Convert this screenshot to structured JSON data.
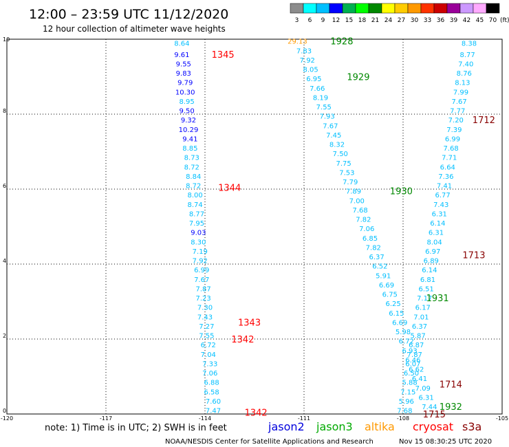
{
  "header": {
    "title": "12:00 – 23:59 UTC 11/12/2020",
    "subtitle": "12 hour collection of altimeter wave heights"
  },
  "legend_scale": {
    "labels": [
      "3",
      "6",
      "9",
      "12",
      "15",
      "18",
      "21",
      "24",
      "27",
      "30",
      "33",
      "36",
      "39",
      "42",
      "45",
      "70"
    ],
    "unit": "(ft)",
    "colors": [
      "#8c8c8c",
      "#00ffff",
      "#00bfff",
      "#0000ff",
      "#00b050",
      "#00ff00",
      "#008800",
      "#ffff00",
      "#ffcc00",
      "#ff9900",
      "#ff3300",
      "#cc0000",
      "#990099",
      "#cc99ff",
      "#ffaaff",
      "#000000"
    ]
  },
  "footer": {
    "note": "note:  1) Time is in UTC; 2) SWH is in feet",
    "satellites": [
      {
        "name": "jason2",
        "color": "#0000dd"
      },
      {
        "name": "jason3",
        "color": "#00aa00"
      },
      {
        "name": "altika",
        "color": "#ff9900"
      },
      {
        "name": "cryosat",
        "color": "#ff0000"
      },
      {
        "name": "s3a",
        "color": "#880000"
      }
    ],
    "credit": "NOAA/NESDIS Center for Satellite Applications and Research",
    "timestamp": "Nov 15 08:30:25 UTC 2020"
  },
  "chart_data": {
    "type": "scatter",
    "xlim": [
      -120,
      -105
    ],
    "ylim": [
      0,
      10
    ],
    "x_ticks": [
      {
        "v": -120,
        "label": "-120"
      },
      {
        "v": -117,
        "label": "-117"
      },
      {
        "v": -114,
        "label": "-114"
      },
      {
        "v": -111,
        "label": "-111"
      },
      {
        "v": -108,
        "label": "-108"
      },
      {
        "v": -105,
        "label": "-105"
      }
    ],
    "y_ticks": [
      {
        "v": 0,
        "label": "0"
      },
      {
        "v": 2,
        "label": "2"
      },
      {
        "v": 4,
        "label": "4"
      },
      {
        "v": 6,
        "label": "6"
      },
      {
        "v": 8,
        "label": "8"
      },
      {
        "v": 10,
        "label": "10"
      }
    ],
    "grid": true,
    "colors": {
      "c6": "#00bfff",
      "c9": "#0000ff",
      "c3": "#00bfff",
      "alt": "#ff9900"
    },
    "time_labels": [
      {
        "x": -113.8,
        "y": 9.6,
        "label": "1345",
        "color": "#ff0000"
      },
      {
        "x": -113.6,
        "y": 6.05,
        "label": "1344",
        "color": "#ff0000"
      },
      {
        "x": -113.0,
        "y": 2.45,
        "label": "1343",
        "color": "#ff0000"
      },
      {
        "x": -113.2,
        "y": 2.0,
        "label": "1342",
        "color": "#ff0000"
      },
      {
        "x": -112.8,
        "y": 0.05,
        "label": "1342",
        "color": "#ff0000"
      },
      {
        "x": -110.2,
        "y": 9.95,
        "label": "1928",
        "color": "#008800"
      },
      {
        "x": -109.7,
        "y": 9.0,
        "label": "1929",
        "color": "#008800"
      },
      {
        "x": -108.4,
        "y": 5.95,
        "label": "1930",
        "color": "#008800"
      },
      {
        "x": -107.3,
        "y": 3.1,
        "label": "1931",
        "color": "#008800"
      },
      {
        "x": -106.9,
        "y": 0.2,
        "label": "1932",
        "color": "#008800"
      },
      {
        "x": -105.9,
        "y": 7.85,
        "label": "1712",
        "color": "#880000"
      },
      {
        "x": -106.2,
        "y": 4.25,
        "label": "1713",
        "color": "#880000"
      },
      {
        "x": -106.9,
        "y": 0.8,
        "label": "1714",
        "color": "#880000"
      },
      {
        "x": -107.4,
        "y": 0.0,
        "label": "1715",
        "color": "#880000"
      }
    ],
    "series": [
      {
        "name": "jason2 (1342-1345)",
        "points": [
          {
            "x": -114.7,
            "y": 9.9,
            "v": "8.64",
            "c": "c6"
          },
          {
            "x": -114.7,
            "y": 9.6,
            "v": "9.61",
            "c": "c9"
          },
          {
            "x": -114.65,
            "y": 9.35,
            "v": "9.55",
            "c": "c9"
          },
          {
            "x": -114.65,
            "y": 9.1,
            "v": "9.83",
            "c": "c9"
          },
          {
            "x": -114.6,
            "y": 8.85,
            "v": "9.79",
            "c": "c9"
          },
          {
            "x": -114.6,
            "y": 8.6,
            "v": "10.30",
            "c": "c9"
          },
          {
            "x": -114.55,
            "y": 8.35,
            "v": "8.95",
            "c": "c6"
          },
          {
            "x": -114.55,
            "y": 8.1,
            "v": "9.50",
            "c": "c9"
          },
          {
            "x": -114.5,
            "y": 7.85,
            "v": "9.32",
            "c": "c9"
          },
          {
            "x": -114.5,
            "y": 7.6,
            "v": "10.29",
            "c": "c9"
          },
          {
            "x": -114.45,
            "y": 7.35,
            "v": "9.41",
            "c": "c9"
          },
          {
            "x": -114.45,
            "y": 7.1,
            "v": "8.85",
            "c": "c6"
          },
          {
            "x": -114.4,
            "y": 6.85,
            "v": "8.73",
            "c": "c6"
          },
          {
            "x": -114.4,
            "y": 6.6,
            "v": "8.72",
            "c": "c6"
          },
          {
            "x": -114.35,
            "y": 6.35,
            "v": "8.84",
            "c": "c6"
          },
          {
            "x": -114.35,
            "y": 6.1,
            "v": "8.72",
            "c": "c6"
          },
          {
            "x": -114.3,
            "y": 5.85,
            "v": "8.00",
            "c": "c6"
          },
          {
            "x": -114.3,
            "y": 5.6,
            "v": "8.74",
            "c": "c6"
          },
          {
            "x": -114.25,
            "y": 5.35,
            "v": "8.77",
            "c": "c6"
          },
          {
            "x": -114.25,
            "y": 5.1,
            "v": "7.95",
            "c": "c6"
          },
          {
            "x": -114.2,
            "y": 4.85,
            "v": "9.03",
            "c": "c9"
          },
          {
            "x": -114.2,
            "y": 4.6,
            "v": "8.30",
            "c": "c6"
          },
          {
            "x": -114.15,
            "y": 4.35,
            "v": "7.19",
            "c": "c6"
          },
          {
            "x": -114.15,
            "y": 4.1,
            "v": "7.92",
            "c": "c6"
          },
          {
            "x": -114.1,
            "y": 3.85,
            "v": "6.99",
            "c": "c6"
          },
          {
            "x": -114.1,
            "y": 3.6,
            "v": "7.67",
            "c": "c6"
          },
          {
            "x": -114.05,
            "y": 3.35,
            "v": "7.87",
            "c": "c6"
          },
          {
            "x": -114.05,
            "y": 3.1,
            "v": "7.23",
            "c": "c6"
          },
          {
            "x": -114.0,
            "y": 2.85,
            "v": "7.30",
            "c": "c6"
          },
          {
            "x": -114.0,
            "y": 2.6,
            "v": "7.43",
            "c": "c6"
          },
          {
            "x": -113.95,
            "y": 2.35,
            "v": "7.27",
            "c": "c6"
          },
          {
            "x": -113.95,
            "y": 2.1,
            "v": "7.55",
            "c": "c6"
          },
          {
            "x": -113.9,
            "y": 1.85,
            "v": "6.72",
            "c": "c6"
          },
          {
            "x": -113.9,
            "y": 1.6,
            "v": "7.04",
            "c": "c6"
          },
          {
            "x": -113.85,
            "y": 1.35,
            "v": "7.33",
            "c": "c6"
          },
          {
            "x": -113.85,
            "y": 1.1,
            "v": "7.06",
            "c": "c6"
          },
          {
            "x": -113.8,
            "y": 0.85,
            "v": "6.88",
            "c": "c6"
          },
          {
            "x": -113.8,
            "y": 0.6,
            "v": "6.58",
            "c": "c6"
          },
          {
            "x": -113.75,
            "y": 0.35,
            "v": "7.60",
            "c": "c6"
          },
          {
            "x": -113.75,
            "y": 0.1,
            "v": "7.47",
            "c": "c6"
          }
        ]
      },
      {
        "name": "jason3 (1928-1932)",
        "points": [
          {
            "x": -111.2,
            "y": 9.95,
            "v": "29.13",
            "c": "alt"
          },
          {
            "x": -111.0,
            "y": 9.7,
            "v": "7.83",
            "c": "c6"
          },
          {
            "x": -110.9,
            "y": 9.45,
            "v": "7.92",
            "c": "c6"
          },
          {
            "x": -110.8,
            "y": 9.2,
            "v": "8.05",
            "c": "c6"
          },
          {
            "x": -110.7,
            "y": 8.95,
            "v": "6.95",
            "c": "c6"
          },
          {
            "x": -110.6,
            "y": 8.7,
            "v": "7.66",
            "c": "c6"
          },
          {
            "x": -110.5,
            "y": 8.45,
            "v": "8.19",
            "c": "c6"
          },
          {
            "x": -110.4,
            "y": 8.2,
            "v": "7.55",
            "c": "c6"
          },
          {
            "x": -110.3,
            "y": 7.95,
            "v": "7.93",
            "c": "c6"
          },
          {
            "x": -110.2,
            "y": 7.7,
            "v": "7.67",
            "c": "c6"
          },
          {
            "x": -110.1,
            "y": 7.45,
            "v": "7.45",
            "c": "c6"
          },
          {
            "x": -110.0,
            "y": 7.2,
            "v": "8.32",
            "c": "c6"
          },
          {
            "x": -109.9,
            "y": 6.95,
            "v": "7.50",
            "c": "c6"
          },
          {
            "x": -109.8,
            "y": 6.7,
            "v": "7.75",
            "c": "c6"
          },
          {
            "x": -109.7,
            "y": 6.45,
            "v": "7.53",
            "c": "c6"
          },
          {
            "x": -109.6,
            "y": 6.2,
            "v": "7.79",
            "c": "c6"
          },
          {
            "x": -109.5,
            "y": 5.95,
            "v": "7.89",
            "c": "c6"
          },
          {
            "x": -109.4,
            "y": 5.7,
            "v": "7.00",
            "c": "c6"
          },
          {
            "x": -109.3,
            "y": 5.45,
            "v": "7.68",
            "c": "c6"
          },
          {
            "x": -109.2,
            "y": 5.2,
            "v": "7.82",
            "c": "c6"
          },
          {
            "x": -109.1,
            "y": 4.95,
            "v": "7.06",
            "c": "c6"
          },
          {
            "x": -109.0,
            "y": 4.7,
            "v": "6.85",
            "c": "c6"
          },
          {
            "x": -108.9,
            "y": 4.45,
            "v": "7.82",
            "c": "c6"
          },
          {
            "x": -108.8,
            "y": 4.2,
            "v": "6.37",
            "c": "c6"
          },
          {
            "x": -108.7,
            "y": 3.95,
            "v": "6.52",
            "c": "c6"
          },
          {
            "x": -108.6,
            "y": 3.7,
            "v": "5.91",
            "c": "c6"
          },
          {
            "x": -108.5,
            "y": 3.45,
            "v": "6.69",
            "c": "c6"
          },
          {
            "x": -108.4,
            "y": 3.2,
            "v": "6.75",
            "c": "c6"
          },
          {
            "x": -108.3,
            "y": 2.95,
            "v": "6.25",
            "c": "c6"
          },
          {
            "x": -108.2,
            "y": 2.7,
            "v": "6.15",
            "c": "c6"
          },
          {
            "x": -108.1,
            "y": 2.45,
            "v": "6.69",
            "c": "c6"
          },
          {
            "x": -108.0,
            "y": 2.2,
            "v": "5.98",
            "c": "c6"
          },
          {
            "x": -107.9,
            "y": 1.95,
            "v": "6.72",
            "c": "c6"
          },
          {
            "x": -107.8,
            "y": 1.7,
            "v": "6.93",
            "c": "c6"
          },
          {
            "x": -107.7,
            "y": 1.45,
            "v": "6.46",
            "c": "c6"
          },
          {
            "x": -107.6,
            "y": 1.2,
            "v": "6.62",
            "c": "c6"
          },
          {
            "x": -107.5,
            "y": 0.95,
            "v": "6.41",
            "c": "c6"
          },
          {
            "x": -107.4,
            "y": 0.7,
            "v": "7.09",
            "c": "c6"
          },
          {
            "x": -107.3,
            "y": 0.45,
            "v": "6.31",
            "c": "c6"
          },
          {
            "x": -107.2,
            "y": 0.2,
            "v": "7.44",
            "c": "c6"
          }
        ]
      },
      {
        "name": "s3a (1712-1715)",
        "points": [
          {
            "x": -106.0,
            "y": 9.9,
            "v": "8.38",
            "c": "c6"
          },
          {
            "x": -106.05,
            "y": 9.6,
            "v": "8.77",
            "c": "c6"
          },
          {
            "x": -106.1,
            "y": 9.35,
            "v": "7.40",
            "c": "c6"
          },
          {
            "x": -106.15,
            "y": 9.1,
            "v": "8.76",
            "c": "c6"
          },
          {
            "x": -106.2,
            "y": 8.85,
            "v": "8.13",
            "c": "c6"
          },
          {
            "x": -106.25,
            "y": 8.6,
            "v": "7.99",
            "c": "c6"
          },
          {
            "x": -106.3,
            "y": 8.35,
            "v": "7.67",
            "c": "c6"
          },
          {
            "x": -106.35,
            "y": 8.1,
            "v": "7.77",
            "c": "c6"
          },
          {
            "x": -106.4,
            "y": 7.85,
            "v": "7.20",
            "c": "c6"
          },
          {
            "x": -106.45,
            "y": 7.6,
            "v": "7.39",
            "c": "c6"
          },
          {
            "x": -106.5,
            "y": 7.35,
            "v": "6.99",
            "c": "c6"
          },
          {
            "x": -106.55,
            "y": 7.1,
            "v": "7.68",
            "c": "c6"
          },
          {
            "x": -106.6,
            "y": 6.85,
            "v": "7.71",
            "c": "c6"
          },
          {
            "x": -106.65,
            "y": 6.6,
            "v": "6.64",
            "c": "c6"
          },
          {
            "x": -106.7,
            "y": 6.35,
            "v": "7.36",
            "c": "c6"
          },
          {
            "x": -106.75,
            "y": 6.1,
            "v": "7.41",
            "c": "c6"
          },
          {
            "x": -106.8,
            "y": 5.85,
            "v": "6.77",
            "c": "c6"
          },
          {
            "x": -106.85,
            "y": 5.6,
            "v": "7.43",
            "c": "c6"
          },
          {
            "x": -106.9,
            "y": 5.35,
            "v": "6.31",
            "c": "c6"
          },
          {
            "x": -106.95,
            "y": 5.1,
            "v": "6.14",
            "c": "c6"
          },
          {
            "x": -107.0,
            "y": 4.85,
            "v": "6.31",
            "c": "c6"
          },
          {
            "x": -107.05,
            "y": 4.6,
            "v": "8.04",
            "c": "c6"
          },
          {
            "x": -107.1,
            "y": 4.35,
            "v": "6.97",
            "c": "c6"
          },
          {
            "x": -107.15,
            "y": 4.1,
            "v": "6.89",
            "c": "c6"
          },
          {
            "x": -107.2,
            "y": 3.85,
            "v": "6.14",
            "c": "c6"
          },
          {
            "x": -107.25,
            "y": 3.6,
            "v": "6.81",
            "c": "c6"
          },
          {
            "x": -107.3,
            "y": 3.35,
            "v": "6.51",
            "c": "c6"
          },
          {
            "x": -107.35,
            "y": 3.1,
            "v": "7.17",
            "c": "c6"
          },
          {
            "x": -107.4,
            "y": 2.85,
            "v": "6.17",
            "c": "c6"
          },
          {
            "x": -107.45,
            "y": 2.6,
            "v": "7.01",
            "c": "c6"
          },
          {
            "x": -107.5,
            "y": 2.35,
            "v": "6.37",
            "c": "c6"
          },
          {
            "x": -107.55,
            "y": 2.1,
            "v": "5.87",
            "c": "c6"
          },
          {
            "x": -107.6,
            "y": 1.85,
            "v": "6.87",
            "c": "c6"
          },
          {
            "x": -107.65,
            "y": 1.6,
            "v": "7.87",
            "c": "c6"
          },
          {
            "x": -107.7,
            "y": 1.35,
            "v": "6.07",
            "c": "c6"
          },
          {
            "x": -107.75,
            "y": 1.1,
            "v": "6.50",
            "c": "c6"
          },
          {
            "x": -107.8,
            "y": 0.85,
            "v": "5.88",
            "c": "c6"
          },
          {
            "x": -107.85,
            "y": 0.6,
            "v": "7.15",
            "c": "c6"
          },
          {
            "x": -107.9,
            "y": 0.35,
            "v": "5.96",
            "c": "c6"
          },
          {
            "x": -107.95,
            "y": 0.1,
            "v": "7.68",
            "c": "c6"
          }
        ]
      }
    ]
  }
}
